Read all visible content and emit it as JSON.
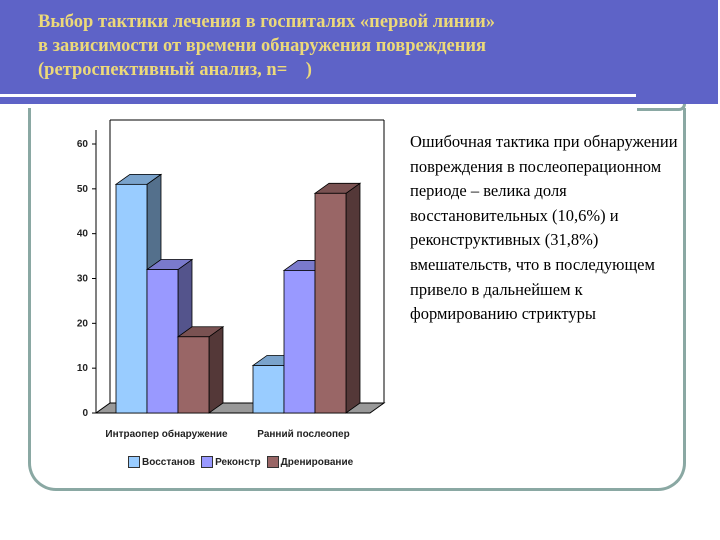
{
  "header": {
    "title_lines": [
      "Выбор тактики лечения в госпиталях «первой линии»",
      "в зависимости от времени обнаружения повреждения",
      "(ретроспективный анализ, n=    )"
    ]
  },
  "description": "Ошибочная тактика при обнаружении повреждения в послеоперационном периоде – велика доля восстановительных (10,6%) и реконструктивных (31,8%) вмешательств, что в последующем привело в дальнейшем к формированию стриктуры",
  "colors": {
    "header_bg": "#5e63c7",
    "header_text": "#ecd97a",
    "frame": "#8aa8a3"
  },
  "chart_data": {
    "type": "bar",
    "title": "",
    "xlabel": "",
    "ylabel": "",
    "categories": [
      "Интраопер обнаружение",
      "Ранний послеопер"
    ],
    "series": [
      {
        "name": "Восстанов",
        "values": [
          51,
          10.6
        ],
        "color": "#99ccff"
      },
      {
        "name": "Реконстр",
        "values": [
          32,
          31.8
        ],
        "color": "#9999ff"
      },
      {
        "name": "Дренирование",
        "values": [
          17,
          49
        ],
        "color": "#996666"
      }
    ],
    "ylim": [
      0,
      60
    ],
    "yticks": [
      0,
      10,
      20,
      30,
      40,
      50,
      60
    ],
    "legend_position": "bottom",
    "grid": false,
    "style": "3d-bars"
  }
}
